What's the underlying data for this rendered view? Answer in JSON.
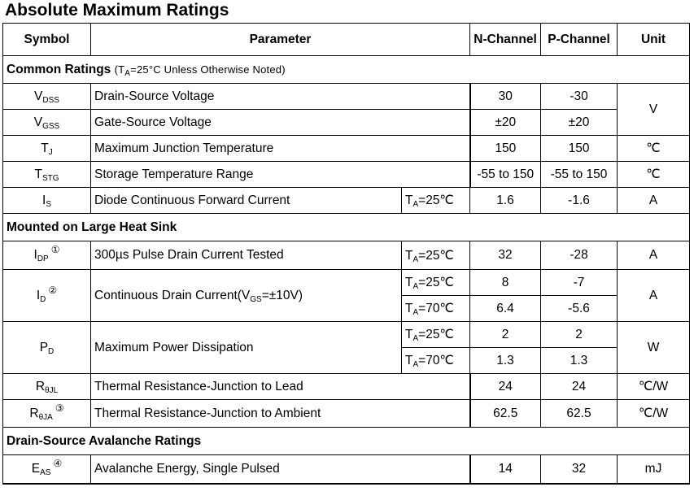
{
  "title": "Absolute Maximum Ratings",
  "headers": {
    "symbol": "Symbol",
    "parameter": "Parameter",
    "n_channel": "N-Channel",
    "p_channel": "P-Channel",
    "unit": "Unit"
  },
  "sections": {
    "common": {
      "label": "Common Ratings",
      "note_prefix": "(T",
      "note_sub": "A",
      "note_suffix": "=25°C Unless Otherwise Noted)"
    },
    "heatsink": {
      "label": "Mounted on Large Heat Sink"
    },
    "avalanche": {
      "label": "Drain-Source Avalanche Ratings"
    }
  },
  "rows": {
    "vdss": {
      "sym": "V",
      "sub": "DSS",
      "param": "Drain-Source Voltage",
      "n": "30",
      "p": "-30"
    },
    "vgss": {
      "sym": "V",
      "sub": "GSS",
      "param": "Gate-Source Voltage",
      "n": "±20",
      "p": "±20"
    },
    "v_unit": "V",
    "tj": {
      "sym": "T",
      "sub": "J",
      "param": "Maximum Junction Temperature",
      "n": "150",
      "p": "150",
      "unit": "℃"
    },
    "tstg": {
      "sym": "T",
      "sub": "STG",
      "param": "Storage Temperature Range",
      "n": "-55 to 150",
      "p": "-55 to 150",
      "unit": "℃"
    },
    "is": {
      "sym": "I",
      "sub": "S",
      "param": "Diode Continuous Forward Current",
      "cond_t": "T",
      "cond_sub": "A",
      "cond_val": "=25℃",
      "n": "1.6",
      "p": "-1.6",
      "unit": "A"
    },
    "idp": {
      "sym": "I",
      "sub": "DP",
      "note": "①",
      "param": "300µs Pulse Drain Current Tested",
      "cond_t": "T",
      "cond_sub": "A",
      "cond_val": "=25℃",
      "n": "32",
      "p": "-28",
      "unit": "A"
    },
    "id": {
      "sym": "I",
      "sub": "D",
      "note": "②",
      "param_prefix": "Continuous Drain Current(V",
      "param_sub": "GS",
      "param_suffix": "=±10V)",
      "c1_t": "T",
      "c1_sub": "A",
      "c1_val": "=25℃",
      "n1": "8",
      "p1": "-7",
      "c2_t": "T",
      "c2_sub": "A",
      "c2_val": "=70℃",
      "n2": "6.4",
      "p2": "-5.6",
      "unit": "A"
    },
    "pd": {
      "sym": "P",
      "sub": "D",
      "param": "Maximum Power Dissipation",
      "c1_t": "T",
      "c1_sub": "A",
      "c1_val": "=25℃",
      "n1": "2",
      "p1": "2",
      "c2_t": "T",
      "c2_sub": "A",
      "c2_val": "=70℃",
      "n2": "1.3",
      "p2": "1.3",
      "unit": "W"
    },
    "rjl": {
      "sym": "R",
      "sub": "θJL",
      "param": "Thermal Resistance-Junction to Lead",
      "n": "24",
      "p": "24",
      "unit": "℃/W"
    },
    "rja": {
      "sym": "R",
      "sub": "θJA",
      "note": "③",
      "param": "Thermal Resistance-Junction to Ambient",
      "n": "62.5",
      "p": "62.5",
      "unit": "℃/W"
    },
    "eas": {
      "sym": "E",
      "sub": "AS",
      "note": "④",
      "param": "Avalanche Energy, Single Pulsed",
      "n": "14",
      "p": "32",
      "unit": "mJ"
    }
  }
}
